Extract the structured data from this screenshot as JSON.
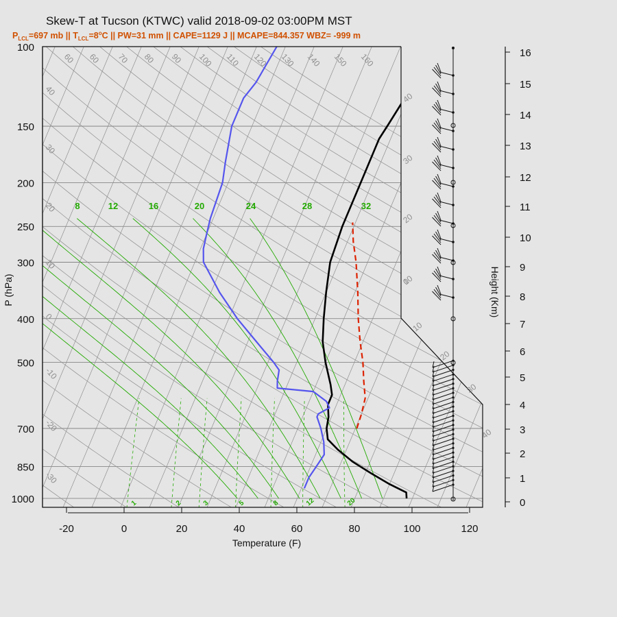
{
  "chart_data": {
    "type": "skew-t",
    "title": "Skew-T at Tucson (KTWC) valid 2018-09-02 03:00PM MST",
    "subtitle_parts": {
      "p_lcl_label": "P",
      "p_lcl_sub": "LCL",
      "p_lcl_value": "=697 mb || ",
      "t_lcl_label": "T",
      "t_lcl_sub": "LCL",
      "t_lcl_value": "=8",
      "deg": "o",
      "rest": "C || PW=31 mm || CAPE=1129 J || MCAPE=844.357 WBZ= -999 m"
    },
    "xlabel": "Temperature (F)",
    "ylabel": "P (hPa)",
    "y2label": "Height (Km)",
    "x_ticks": [
      -20,
      0,
      20,
      40,
      60,
      80,
      100,
      120
    ],
    "x_range": [
      -28,
      125
    ],
    "pressure_ticks": [
      100,
      150,
      200,
      250,
      300,
      400,
      500,
      700,
      850,
      1000
    ],
    "pressure_range": [
      100,
      1050
    ],
    "height_ticks": [
      0,
      1,
      2,
      3,
      4,
      5,
      6,
      7,
      8,
      9,
      10,
      11,
      12,
      13,
      14,
      15,
      16
    ],
    "isotherm_labels": [
      "60",
      "60",
      "70",
      "80",
      "90",
      "100",
      "110",
      "120",
      "130",
      "140",
      "150",
      "160"
    ],
    "dry_adiabat_labels": [
      "-40",
      "-30",
      "-20",
      "-10",
      "0",
      "10",
      "20",
      "30",
      "40"
    ],
    "left_edge_labels": [
      "40",
      "30",
      "20",
      "10",
      "0",
      "-10",
      "-20",
      "-30"
    ],
    "moist_adiabat_labels": [
      "8",
      "12",
      "16",
      "20",
      "24",
      "28",
      "32"
    ],
    "mixing_ratio_labels": [
      "1",
      "2",
      "3",
      "5",
      "8",
      "12",
      "20"
    ],
    "series": [
      {
        "name": "temperature",
        "color": "#000000",
        "points": [
          [
            1000,
            98
          ],
          [
            970,
            97
          ],
          [
            930,
            90
          ],
          [
            880,
            82
          ],
          [
            830,
            74
          ],
          [
            780,
            67
          ],
          [
            740,
            62
          ],
          [
            700,
            60
          ],
          [
            660,
            59
          ],
          [
            620,
            57
          ],
          [
            590,
            57
          ],
          [
            560,
            55
          ],
          [
            500,
            50
          ],
          [
            450,
            46
          ],
          [
            400,
            43
          ],
          [
            350,
            40
          ],
          [
            300,
            37
          ],
          [
            250,
            36
          ],
          [
            200,
            36
          ],
          [
            160,
            36
          ],
          [
            150,
            37
          ],
          [
            130,
            39
          ],
          [
            120,
            41
          ],
          [
            100,
            45
          ]
        ]
      },
      {
        "name": "dewpoint",
        "color": "#5555ee",
        "points": [
          [
            950,
            61
          ],
          [
            900,
            61
          ],
          [
            850,
            62
          ],
          [
            800,
            63
          ],
          [
            750,
            61
          ],
          [
            700,
            58
          ],
          [
            660,
            55
          ],
          [
            650,
            55
          ],
          [
            630,
            58
          ],
          [
            610,
            56
          ],
          [
            580,
            50
          ],
          [
            570,
            37
          ],
          [
            550,
            36
          ],
          [
            520,
            35
          ],
          [
            500,
            32
          ],
          [
            450,
            23
          ],
          [
            400,
            13
          ],
          [
            350,
            3
          ],
          [
            300,
            -7
          ],
          [
            280,
            -9
          ],
          [
            260,
            -10
          ],
          [
            240,
            -11
          ],
          [
            200,
            -12
          ],
          [
            180,
            -14
          ],
          [
            150,
            -17
          ],
          [
            130,
            -17
          ],
          [
            120,
            -15
          ],
          [
            100,
            -13
          ]
        ]
      },
      {
        "name": "parcel",
        "color": "#dd2200",
        "points": [
          [
            700,
            70.5
          ],
          [
            650,
            70
          ],
          [
            600,
            69
          ],
          [
            550,
            66
          ],
          [
            500,
            63
          ],
          [
            450,
            59
          ],
          [
            400,
            55
          ],
          [
            350,
            51
          ],
          [
            300,
            46
          ],
          [
            270,
            42
          ],
          [
            245,
            39
          ]
        ]
      }
    ],
    "wind_barbs": {
      "lower_count": 28,
      "upper_count": 13
    }
  },
  "colors": {
    "background": "#e5e5e5",
    "grid": "#777777",
    "isopleth": "#8f8f8f",
    "moist_adiabat": "#22aa00",
    "subtitle": "#d05000"
  }
}
